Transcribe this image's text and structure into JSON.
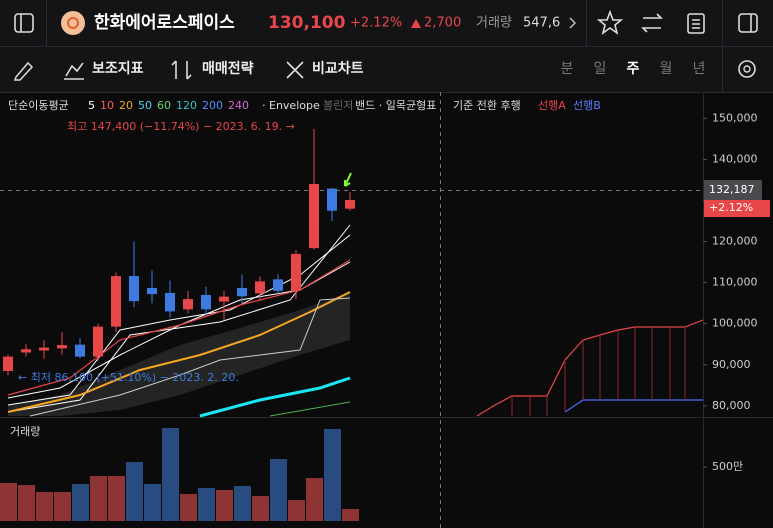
{
  "header": {
    "name": "한화에어로스페이스",
    "price": "130,100",
    "change_pct": "+2.12%",
    "change": "2,700",
    "volume_label": "거래량",
    "volume": "547,6"
  },
  "toolbar": {
    "indicators": "보조지표",
    "strategy": "매매전략",
    "compare": "비교차트",
    "periods": [
      "분",
      "일",
      "주",
      "월",
      "년"
    ],
    "active_period": 2
  },
  "legend": {
    "ma": "단순이동평균",
    "ma_periods": [
      {
        "text": "5",
        "color": "#ffffff"
      },
      {
        "text": "10",
        "color": "#ff5b5b"
      },
      {
        "text": "20",
        "color": "#f5a623"
      },
      {
        "text": "50",
        "color": "#4fd1e8"
      },
      {
        "text": "60",
        "color": "#6ad06a"
      },
      {
        "text": "120",
        "color": "#3fc0c0"
      },
      {
        "text": "200",
        "color": "#5b8cff"
      },
      {
        "text": "240",
        "color": "#d46ad4"
      }
    ],
    "envelope": "· Envelope",
    "bollinger": "볼린저",
    "band": "밴드 · 일목균형표",
    "ichimoku": "기준 전환 후행",
    "spanA": "선행A",
    "spanB": "선행B"
  },
  "annotations": {
    "high": "최고 147,400 (−11.74%) − 2023. 6. 19. →",
    "low": "← 최저 86,100 (+51.10%) − 2023. 2. 20.",
    "crosshair": "132,187",
    "tag": "+2.12%"
  },
  "price_chart": {
    "ylim": [
      77300,
      156400
    ],
    "up_color": "#e8474a",
    "down_color": "#3d7be0",
    "yticks": [
      {
        "value": 150000,
        "label": "150,000"
      },
      {
        "value": 140000,
        "label": "140,000"
      },
      {
        "value": 130000,
        "label": "130,000"
      },
      {
        "value": 120000,
        "label": "120,000"
      },
      {
        "value": 110000,
        "label": "110,000"
      },
      {
        "value": 100000,
        "label": "100,000"
      },
      {
        "value": 90000,
        "label": "90,000"
      },
      {
        "value": 80000,
        "label": "80,000"
      }
    ],
    "candles": [
      {
        "open": 88500,
        "high": 92500,
        "low": 87500,
        "close": 92000
      },
      {
        "open": 93000,
        "high": 95000,
        "low": 92000,
        "close": 93800
      },
      {
        "open": 93500,
        "high": 96000,
        "low": 91500,
        "close": 94200
      },
      {
        "open": 94000,
        "high": 98000,
        "low": 92500,
        "close": 94800
      },
      {
        "open": 94900,
        "high": 96500,
        "low": 91500,
        "close": 92000
      },
      {
        "open": 92000,
        "high": 100000,
        "low": 91000,
        "close": 99300
      },
      {
        "open": 99300,
        "high": 112500,
        "low": 98000,
        "close": 111600
      },
      {
        "open": 111600,
        "high": 120000,
        "low": 104000,
        "close": 105500
      },
      {
        "open": 108700,
        "high": 113000,
        "low": 105000,
        "close": 107200
      },
      {
        "open": 107500,
        "high": 110500,
        "low": 101500,
        "close": 103000
      },
      {
        "open": 103500,
        "high": 108000,
        "low": 102500,
        "close": 106000
      },
      {
        "open": 107000,
        "high": 109000,
        "low": 102000,
        "close": 103500
      },
      {
        "open": 105400,
        "high": 108000,
        "low": 101000,
        "close": 106600
      },
      {
        "open": 108700,
        "high": 112000,
        "low": 105000,
        "close": 106700
      },
      {
        "open": 107400,
        "high": 111500,
        "low": 105500,
        "close": 110300
      },
      {
        "open": 110800,
        "high": 112000,
        "low": 107000,
        "close": 108000
      },
      {
        "open": 108000,
        "high": 118000,
        "low": 106000,
        "close": 117000
      },
      {
        "open": 118400,
        "high": 147400,
        "low": 118000,
        "close": 134000
      },
      {
        "open": 132900,
        "high": 133000,
        "low": 125000,
        "close": 127500
      },
      {
        "open": 128000,
        "high": 132000,
        "low": 127500,
        "close": 130100
      }
    ]
  },
  "volume_chart": {
    "label": "거래량",
    "ylim": [
      0,
      926
    ],
    "yticks": [
      {
        "value": 500,
        "label": "500만"
      }
    ],
    "up_color": "#8e3434",
    "down_color": "#284b80",
    "values": [
      352,
      333,
      268,
      268,
      343,
      417,
      417,
      546,
      343,
      861,
      250,
      306,
      287,
      324,
      231,
      574,
      194,
      398,
      852,
      111
    ]
  }
}
